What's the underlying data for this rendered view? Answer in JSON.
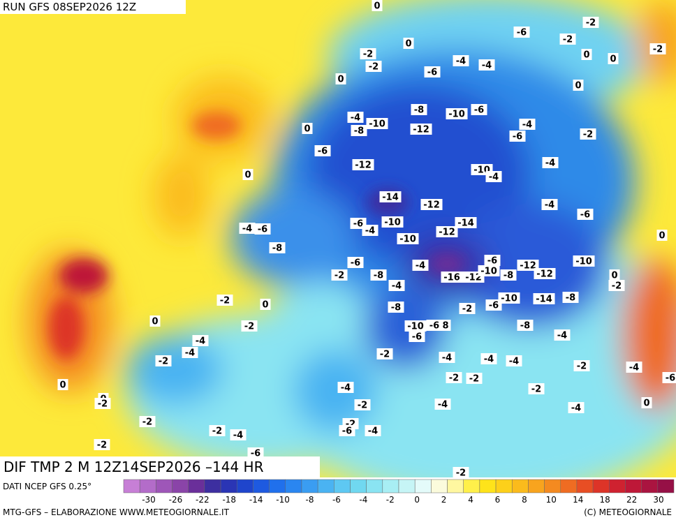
{
  "header": {
    "run": "RUN GFS 08SEP2026 12Z"
  },
  "map_title": "DIF TMP 2 M 12Z14SEP2026 –144 HR",
  "map_labels": [
    "0",
    "-6",
    "-2",
    "-2",
    "-2",
    "0",
    "-2",
    "-2",
    "-4",
    "-4",
    "-6",
    "0",
    "0",
    "0",
    "0",
    "-8",
    "-10",
    "-6",
    "-4",
    "-10",
    "-8",
    "-12",
    "-4",
    "-6",
    "-2",
    "0",
    "-6",
    "-12",
    "-10",
    "-4",
    "-4",
    "0",
    "-14",
    "-12",
    "-4",
    "-6",
    "-4",
    "-6",
    "-6",
    "-4",
    "-10",
    "-14",
    "-12",
    "-10",
    "0",
    "-8",
    "-6",
    "-6",
    "-4",
    "-12",
    "-10",
    "-2",
    "-8",
    "-16",
    "-12",
    "-10",
    "-8",
    "-12",
    "0",
    "-2",
    "-4",
    "-2",
    "0",
    "-10",
    "-6",
    "-14",
    "-8",
    "-8",
    "-2",
    "0",
    "-2",
    "-10",
    "-6",
    "8",
    "-8",
    "-4",
    "-4",
    "-6",
    "-4",
    "-2",
    "-2",
    "-4",
    "-4",
    "-4",
    "-2",
    "-4",
    "-6",
    "0",
    "-2",
    "-2",
    "-4",
    "-2",
    "0",
    "-2",
    "-2",
    "-4",
    "0",
    "-4",
    "-2",
    "-2",
    "-6",
    "-4",
    "-2",
    "-4",
    "-2",
    "-6",
    "-2"
  ],
  "legend": {
    "source": "DATI NCEP GFS 0.25°",
    "colors": [
      "#c77fd6",
      "#b36cc9",
      "#9e56b8",
      "#8a44a8",
      "#6a2f9a",
      "#3d2fa0",
      "#2a35b5",
      "#1f45cc",
      "#1e5ae0",
      "#2070ec",
      "#2a86f0",
      "#3a9df2",
      "#4ab3f2",
      "#5ec8f2",
      "#70d8f0",
      "#8ae4f2",
      "#a8eef4",
      "#c6f5f6",
      "#e4fbfa",
      "#fbfbdc",
      "#fff7a0",
      "#fff04a",
      "#fee31a",
      "#fdd01a",
      "#fbbb1c",
      "#f8a41e",
      "#f48a20",
      "#ef6c22",
      "#e84e24",
      "#dd3428",
      "#cf2230",
      "#be1838",
      "#aa1440",
      "#961046"
    ],
    "labels": [
      "-30",
      "-26",
      "-22",
      "-18",
      "-14",
      "-10",
      "-8",
      "-6",
      "-4",
      "-2",
      "0",
      "2",
      "4",
      "6",
      "8",
      "10",
      "14",
      "18",
      "22",
      "30"
    ]
  },
  "footer": {
    "left": "MTG-GFS – ELABORAZIONE WWW.METEOGIORNALE.IT",
    "right": "(C) METEOGIORNALE"
  }
}
